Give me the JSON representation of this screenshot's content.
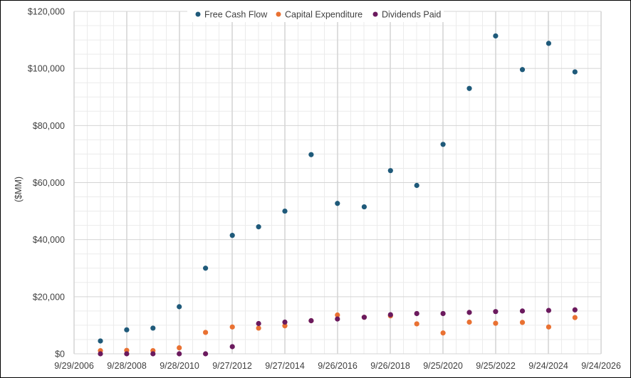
{
  "chart_data": {
    "type": "scatter",
    "title": "",
    "xlabel": "",
    "ylabel": "($MM)",
    "ylim": [
      0,
      120000
    ],
    "y_ticks": [
      0,
      20000,
      40000,
      60000,
      80000,
      100000,
      120000
    ],
    "y_tick_labels": [
      "$0",
      "$20,000",
      "$40,000",
      "$60,000",
      "$80,000",
      "$100,000",
      "$120,000"
    ],
    "x_tick_labels": [
      "9/29/2006",
      "9/28/2008",
      "9/28/2010",
      "9/27/2012",
      "9/27/2014",
      "9/26/2016",
      "9/26/2018",
      "9/25/2020",
      "9/25/2022",
      "9/24/2024",
      "9/24/2026"
    ],
    "x": [
      "9/29/2007",
      "9/27/2008",
      "9/26/2009",
      "9/25/2010",
      "9/24/2011",
      "9/29/2012",
      "9/28/2013",
      "9/27/2014",
      "9/26/2015",
      "9/24/2016",
      "9/30/2017",
      "9/29/2018",
      "9/28/2019",
      "9/26/2020",
      "9/25/2021",
      "9/24/2022",
      "9/30/2023",
      "9/28/2024",
      "9/27/2025"
    ],
    "grid": true,
    "legend_position": "top",
    "series": [
      {
        "name": "Free Cash Flow",
        "color": "#1f5a7a",
        "values": [
          4500,
          8400,
          9000,
          16500,
          30000,
          41500,
          44500,
          50000,
          69800,
          52700,
          51500,
          64200,
          59000,
          73400,
          93000,
          111400,
          99600,
          108800,
          98800
        ]
      },
      {
        "name": "Capital Expenditure",
        "color": "#e97132",
        "values": [
          1100,
          1200,
          1100,
          2100,
          7500,
          9400,
          9000,
          9800,
          11600,
          13600,
          12800,
          13300,
          10500,
          7300,
          11100,
          10700,
          11000,
          9400,
          12700
        ]
      },
      {
        "name": "Dividends Paid",
        "color": "#6b1a5e",
        "values": [
          0,
          0,
          0,
          0,
          0,
          2500,
          10600,
          11100,
          11600,
          12200,
          12800,
          13700,
          14100,
          14100,
          14500,
          14800,
          15000,
          15200,
          15400
        ]
      }
    ]
  }
}
